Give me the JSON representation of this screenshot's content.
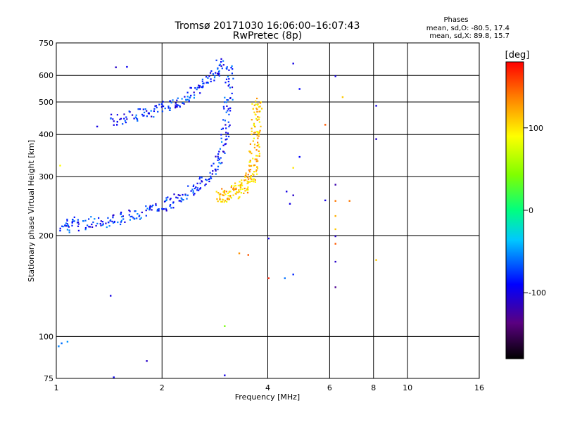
{
  "chart_data": {
    "type": "scatter",
    "title_line1": "Tromsø 20171030 16:06:00–16:07:43",
    "title_line2": "RwPretec (8p)",
    "xlabel": "Frequency [MHz]",
    "ylabel": "Stationary phase Virtual Height [km]",
    "x_scale": "log",
    "y_scale": "log",
    "xlim": [
      1,
      16
    ],
    "ylim": [
      75,
      750
    ],
    "x_ticks": [
      1,
      2,
      4,
      6,
      8,
      10,
      16
    ],
    "x_tick_labels": [
      "1",
      "2",
      "4",
      "6",
      "8",
      "10",
      "16"
    ],
    "y_ticks": [
      75,
      100,
      200,
      300,
      400,
      500,
      600,
      750
    ],
    "y_tick_labels": [
      "75",
      "100",
      "200",
      "300",
      "400",
      "500",
      "600",
      "750"
    ],
    "grid": true,
    "phase_info": {
      "title": "Phases",
      "line_o": "mean, sd,O:  -80.5, 17.4",
      "line_x": "mean, sd,X:   89.8, 15.7"
    },
    "colorbar": {
      "label": "[deg]",
      "range": [
        -180,
        180
      ],
      "ticks": [
        100,
        0,
        -100
      ],
      "tick_labels": [
        "100",
        "0",
        "-100"
      ]
    },
    "o_trace": {
      "phase_deg": -80,
      "points": [
        [
          1.05,
          218
        ],
        [
          1.08,
          212
        ],
        [
          1.12,
          222
        ],
        [
          1.18,
          216
        ],
        [
          1.25,
          220
        ],
        [
          1.32,
          222
        ],
        [
          1.4,
          221
        ],
        [
          1.48,
          224
        ],
        [
          1.55,
          228
        ],
        [
          1.62,
          230
        ],
        [
          1.7,
          233
        ],
        [
          1.8,
          237
        ],
        [
          1.9,
          242
        ],
        [
          2.0,
          247
        ],
        [
          2.1,
          252
        ],
        [
          2.2,
          258
        ],
        [
          2.3,
          265
        ],
        [
          2.4,
          272
        ],
        [
          2.5,
          280
        ],
        [
          2.6,
          290
        ],
        [
          2.7,
          302
        ],
        [
          2.8,
          318
        ],
        [
          2.9,
          340
        ],
        [
          2.95,
          365
        ],
        [
          3.0,
          395
        ],
        [
          3.02,
          430
        ],
        [
          3.05,
          470
        ],
        [
          3.08,
          520
        ],
        [
          3.1,
          570
        ],
        [
          3.12,
          620
        ],
        [
          1.45,
          445
        ],
        [
          1.55,
          448
        ],
        [
          1.65,
          455
        ],
        [
          1.75,
          462
        ],
        [
          1.85,
          470
        ],
        [
          1.95,
          480
        ],
        [
          2.05,
          488
        ],
        [
          2.15,
          495
        ],
        [
          2.25,
          505
        ],
        [
          2.35,
          518
        ],
        [
          2.45,
          535
        ],
        [
          2.55,
          555
        ],
        [
          2.65,
          575
        ],
        [
          2.75,
          600
        ],
        [
          2.85,
          625
        ],
        [
          2.92,
          650
        ]
      ]
    },
    "x_trace": {
      "phase_deg": 110,
      "points": [
        [
          2.9,
          262
        ],
        [
          3.0,
          264
        ],
        [
          3.1,
          266
        ],
        [
          3.2,
          270
        ],
        [
          3.3,
          275
        ],
        [
          3.4,
          282
        ],
        [
          3.5,
          290
        ],
        [
          3.55,
          300
        ],
        [
          3.6,
          315
        ],
        [
          3.62,
          335
        ],
        [
          3.65,
          360
        ],
        [
          3.66,
          390
        ],
        [
          3.68,
          420
        ],
        [
          3.7,
          460
        ],
        [
          3.7,
          500
        ]
      ]
    },
    "scattered_points": [
      [
        1.47,
        638,
        -110
      ],
      [
        1.58,
        640,
        -95
      ],
      [
        1.3,
        425,
        -100
      ],
      [
        1.48,
        430,
        -90
      ],
      [
        1.02,
        208,
        -80
      ],
      [
        1.01,
        94,
        -55
      ],
      [
        1.03,
        96,
        -60
      ],
      [
        1.07,
        97,
        -50
      ],
      [
        1.42,
        133,
        -100
      ],
      [
        1.45,
        76,
        -95
      ],
      [
        1.8,
        85,
        -110
      ],
      [
        3.0,
        77,
        -100
      ],
      [
        3.0,
        108,
        40
      ],
      [
        3.3,
        178,
        130
      ],
      [
        3.5,
        176,
        150
      ],
      [
        4.0,
        150,
        170
      ],
      [
        4.0,
        197,
        -100
      ],
      [
        4.45,
        150,
        -60
      ],
      [
        4.7,
        154,
        -80
      ],
      [
        4.6,
        250,
        -100
      ],
      [
        4.7,
        265,
        -110
      ],
      [
        4.5,
        272,
        -100
      ],
      [
        4.7,
        320,
        100
      ],
      [
        4.9,
        345,
        -90
      ],
      [
        4.9,
        550,
        -90
      ],
      [
        4.7,
        655,
        -100
      ],
      [
        5.8,
        430,
        150
      ],
      [
        6.2,
        600,
        -100
      ],
      [
        6.2,
        285,
        -120
      ],
      [
        6.2,
        255,
        140
      ],
      [
        6.2,
        230,
        120
      ],
      [
        6.2,
        210,
        110
      ],
      [
        6.2,
        200,
        -110
      ],
      [
        6.2,
        190,
        150
      ],
      [
        6.2,
        168,
        -110
      ],
      [
        6.2,
        141,
        -130
      ],
      [
        6.5,
        520,
        110
      ],
      [
        6.8,
        255,
        140
      ],
      [
        8.1,
        490,
        -100
      ],
      [
        8.1,
        390,
        -110
      ],
      [
        8.1,
        170,
        110
      ],
      [
        5.8,
        256,
        -100
      ],
      [
        1.02,
        325,
        90
      ]
    ]
  }
}
